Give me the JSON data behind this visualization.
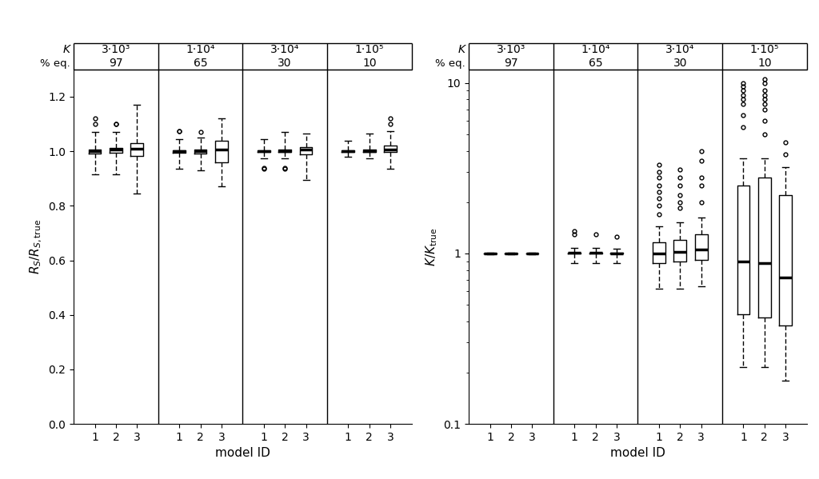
{
  "groups": [
    {
      "k_label": "3·10³",
      "peq_label": "97"
    },
    {
      "k_label": "1·10⁴",
      "peq_label": "65"
    },
    {
      "k_label": "3·10⁴",
      "peq_label": "30"
    },
    {
      "k_label": "1·10⁵",
      "peq_label": "10"
    }
  ],
  "xlabel": "model ID",
  "left_ylim": [
    0.0,
    1.3
  ],
  "left_yticks": [
    0.0,
    0.2,
    0.4,
    0.6,
    0.8,
    1.0,
    1.2
  ],
  "right_ylim": [
    0.1,
    12.0
  ],
  "left_stats": [
    {
      "med": 1.0,
      "q1": 0.992,
      "q3": 1.006,
      "whislo": 0.915,
      "whishi": 1.07,
      "fliers": [
        1.1,
        1.12
      ]
    },
    {
      "med": 1.005,
      "q1": 0.994,
      "q3": 1.012,
      "whislo": 0.915,
      "whishi": 1.07,
      "fliers": [
        1.1,
        1.1
      ]
    },
    {
      "med": 1.01,
      "q1": 0.982,
      "q3": 1.03,
      "whislo": 0.845,
      "whishi": 1.17,
      "fliers": []
    },
    {
      "med": 1.0,
      "q1": 0.995,
      "q3": 1.004,
      "whislo": 0.935,
      "whishi": 1.045,
      "fliers": [
        1.075,
        1.075
      ]
    },
    {
      "med": 1.0,
      "q1": 0.993,
      "q3": 1.006,
      "whislo": 0.93,
      "whishi": 1.05,
      "fliers": [
        1.07
      ]
    },
    {
      "med": 1.005,
      "q1": 0.96,
      "q3": 1.04,
      "whislo": 0.87,
      "whishi": 1.12,
      "fliers": []
    },
    {
      "med": 1.0,
      "q1": 0.997,
      "q3": 1.003,
      "whislo": 0.975,
      "whishi": 1.045,
      "fliers": [
        0.935,
        0.94
      ]
    },
    {
      "med": 1.0,
      "q1": 0.997,
      "q3": 1.005,
      "whislo": 0.975,
      "whishi": 1.07,
      "fliers": [
        0.935,
        0.94
      ]
    },
    {
      "med": 1.005,
      "q1": 0.99,
      "q3": 1.015,
      "whislo": 0.895,
      "whishi": 1.065,
      "fliers": []
    },
    {
      "med": 1.0,
      "q1": 0.997,
      "q3": 1.003,
      "whislo": 0.98,
      "whishi": 1.04,
      "fliers": []
    },
    {
      "med": 1.0,
      "q1": 0.997,
      "q3": 1.005,
      "whislo": 0.975,
      "whishi": 1.065,
      "fliers": []
    },
    {
      "med": 1.005,
      "q1": 0.997,
      "q3": 1.02,
      "whislo": 0.935,
      "whishi": 1.075,
      "fliers": [
        1.1,
        1.12
      ]
    }
  ],
  "right_stats": [
    {
      "med": 1.0,
      "q1": 0.998,
      "q3": 1.002,
      "whislo": 0.993,
      "whishi": 1.007,
      "fliers": []
    },
    {
      "med": 1.0,
      "q1": 0.998,
      "q3": 1.002,
      "whislo": 0.993,
      "whishi": 1.007,
      "fliers": []
    },
    {
      "med": 1.0,
      "q1": 0.998,
      "q3": 1.002,
      "whislo": 0.993,
      "whishi": 1.007,
      "fliers": []
    },
    {
      "med": 1.005,
      "q1": 1.0,
      "q3": 1.015,
      "whislo": 0.875,
      "whishi": 1.075,
      "fliers": [
        1.3,
        1.35
      ]
    },
    {
      "med": 1.005,
      "q1": 1.0,
      "q3": 1.015,
      "whislo": 0.875,
      "whishi": 1.075,
      "fliers": [
        1.3
      ]
    },
    {
      "med": 1.003,
      "q1": 0.995,
      "q3": 1.012,
      "whislo": 0.875,
      "whishi": 1.07,
      "fliers": [
        1.25
      ]
    },
    {
      "med": 1.0,
      "q1": 0.88,
      "q3": 1.16,
      "whislo": 0.62,
      "whishi": 1.44,
      "fliers": [
        1.7,
        1.9,
        2.1,
        2.3,
        2.5,
        2.8,
        3.0,
        3.3
      ]
    },
    {
      "med": 1.02,
      "q1": 0.9,
      "q3": 1.2,
      "whislo": 0.62,
      "whishi": 1.52,
      "fliers": [
        1.85,
        2.0,
        2.2,
        2.5,
        2.8,
        3.1
      ]
    },
    {
      "med": 1.05,
      "q1": 0.92,
      "q3": 1.3,
      "whislo": 0.64,
      "whishi": 1.62,
      "fliers": [
        2.0,
        2.5,
        2.8,
        3.5,
        4.0
      ]
    },
    {
      "med": 0.9,
      "q1": 0.44,
      "q3": 2.5,
      "whislo": 0.215,
      "whishi": 3.6,
      "fliers": [
        5.5,
        6.5,
        7.5,
        8.0,
        8.5,
        9.0,
        9.5,
        10.0
      ]
    },
    {
      "med": 0.88,
      "q1": 0.42,
      "q3": 2.8,
      "whislo": 0.215,
      "whishi": 3.6,
      "fliers": [
        5.0,
        6.0,
        7.0,
        7.5,
        8.0,
        8.5,
        9.0,
        10.0,
        10.5
      ]
    },
    {
      "med": 0.72,
      "q1": 0.38,
      "q3": 2.2,
      "whislo": 0.18,
      "whishi": 3.2,
      "fliers": [
        3.8,
        4.5
      ]
    }
  ]
}
